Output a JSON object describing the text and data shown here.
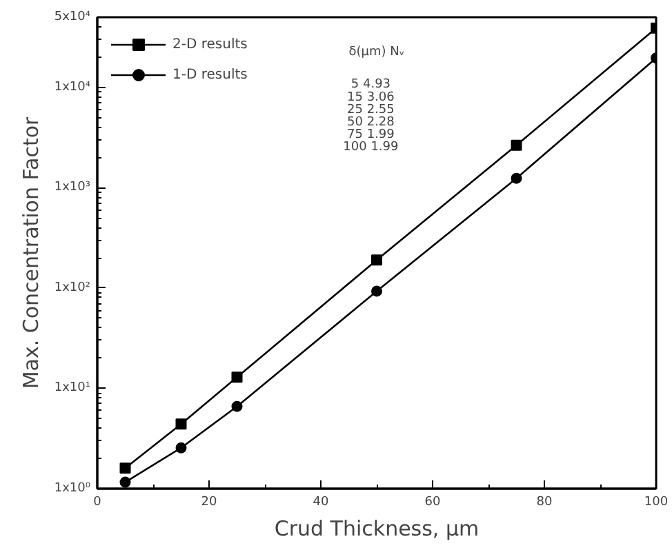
{
  "chart_data": {
    "type": "line",
    "xlabel": "Crud Thickness, μm",
    "ylabel": "Max. Concentration Factor",
    "x": [
      5,
      15,
      25,
      50,
      75,
      100
    ],
    "series": [
      {
        "name": "2-D results",
        "color": "#000000",
        "marker": "square",
        "values": [
          1.6,
          4.4,
          12.9,
          190,
          2650,
          39000
        ]
      },
      {
        "name": "1-D results",
        "color": "#000000",
        "marker": "circle",
        "values": [
          1.16,
          2.55,
          6.6,
          93,
          1240,
          19600
        ]
      }
    ],
    "log": "y",
    "xlim": [
      0,
      100
    ],
    "ylim": [
      1,
      50000
    ],
    "xticks": [
      0,
      20,
      40,
      60,
      80,
      100
    ],
    "yticks": [
      {
        "value": 1,
        "label": "1x10⁰"
      },
      {
        "value": 10,
        "label": "1x10¹"
      },
      {
        "value": 100,
        "label": "1x10²"
      },
      {
        "value": 1000,
        "label": "1x10³"
      },
      {
        "value": 10000,
        "label": "1x10⁴"
      },
      {
        "value": 50000,
        "label": "5x10⁴"
      }
    ],
    "grid": false,
    "legend": "top left",
    "line_style": "solid",
    "annotations": [
      "δ(μm)   Nᵥ",
      "5    4.93",
      "15    3.06",
      "25    2.55",
      "50    2.28",
      "75    1.99",
      "100    1.99"
    ]
  }
}
